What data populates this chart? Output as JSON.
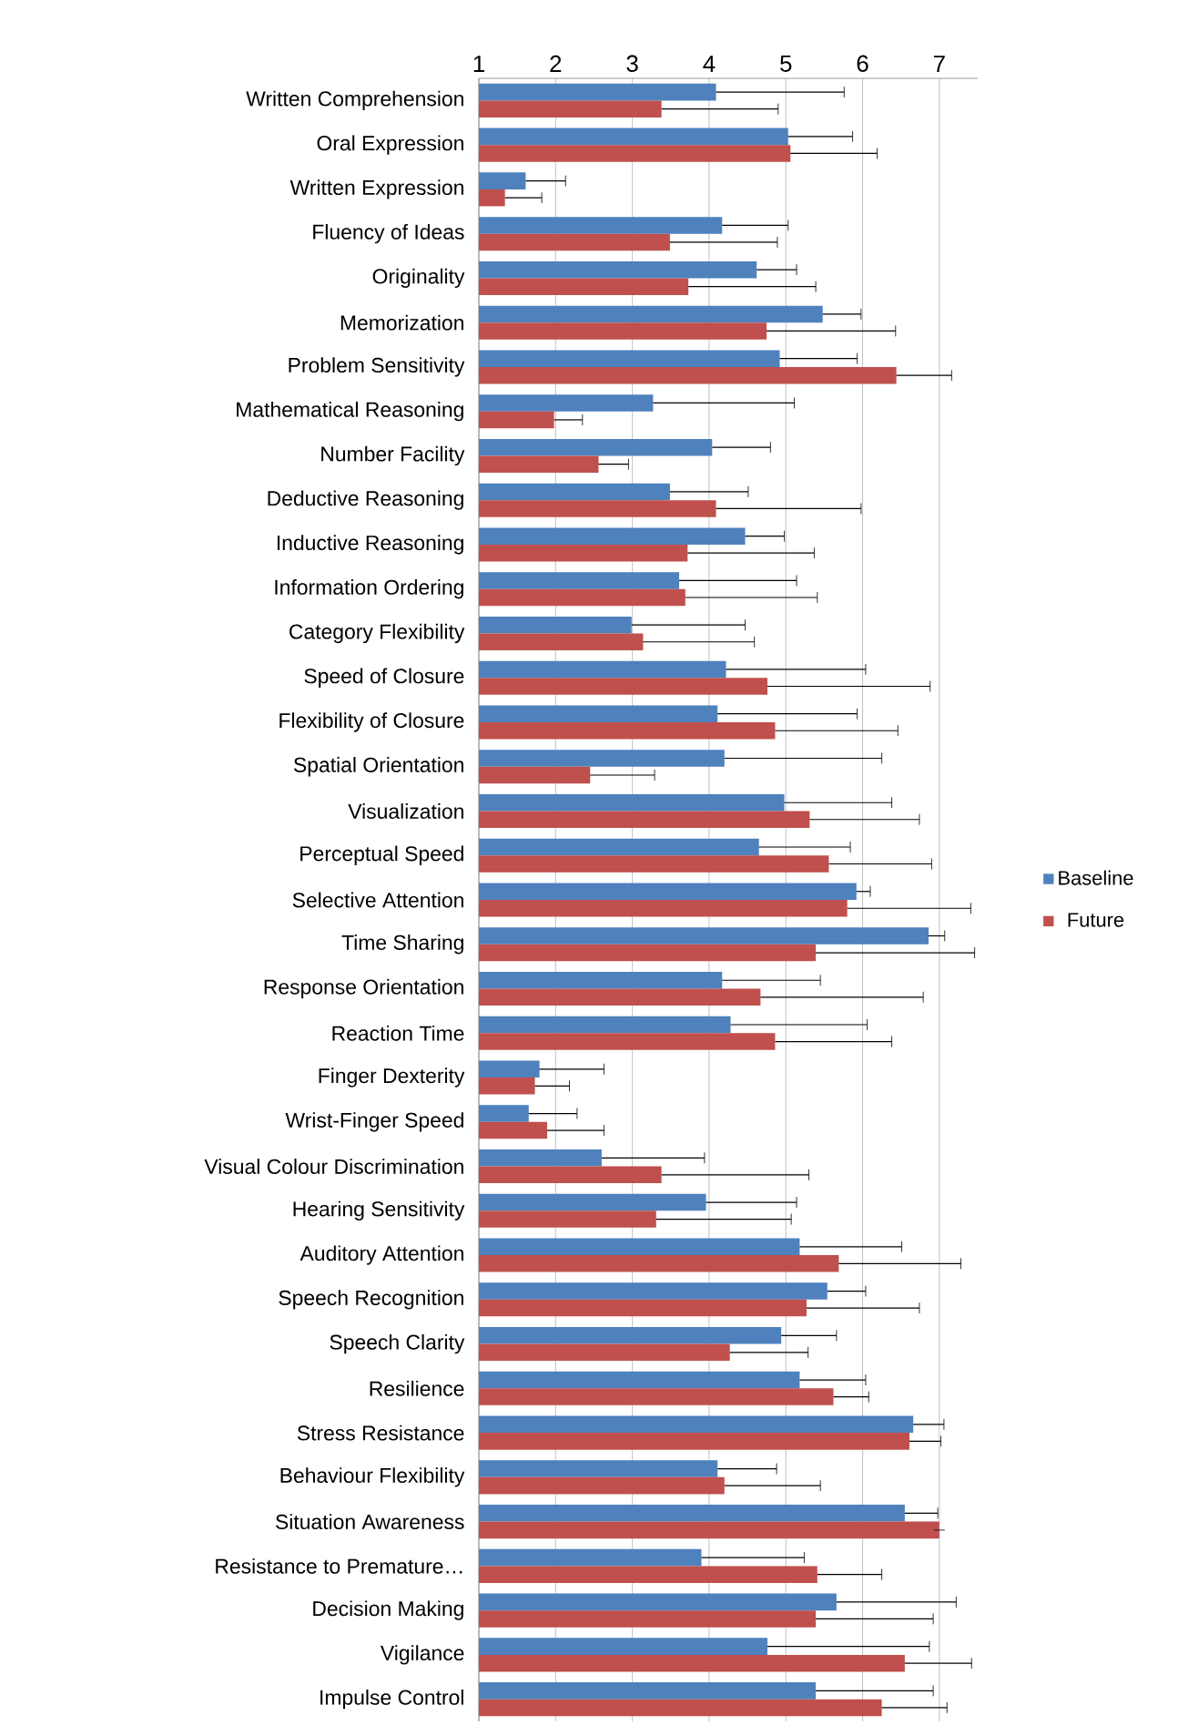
{
  "chart_data": {
    "type": "bar",
    "orientation": "horizontal",
    "categories": [
      "Written Comprehension",
      "Oral Expression",
      "Written Expression",
      "Fluency of Ideas",
      "Originality",
      "Memorization",
      "Problem Sensitivity",
      "Mathematical Reasoning",
      "Number Facility",
      "Deductive Reasoning",
      "Inductive Reasoning",
      "Information Ordering",
      "Category Flexibility",
      "Speed of Closure",
      "Flexibility of Closure",
      "Spatial Orientation",
      "Visualization",
      "Perceptual Speed",
      "Selective Attention",
      "Time Sharing",
      "Response Orientation",
      "Reaction Time",
      "Finger Dexterity",
      "Wrist-Finger Speed",
      "Visual Colour Discrimination",
      "Hearing Sensitivity",
      "Auditory Attention",
      "Speech Recognition",
      "Speech Clarity",
      "Resilience",
      "Stress Resistance",
      "Behaviour Flexibility",
      "Situation Awareness",
      "Resistance to Premature…",
      "Decision Making",
      "Vigilance",
      "Impulse Control"
    ],
    "series": [
      {
        "name": "Baseline",
        "color": "#4f81bd",
        "values": [
          4.09,
          5.03,
          1.61,
          4.17,
          4.62,
          5.48,
          4.92,
          3.27,
          4.04,
          3.49,
          4.47,
          3.61,
          2.99,
          4.22,
          4.11,
          4.2,
          4.98,
          4.65,
          5.92,
          6.86,
          4.17,
          4.28,
          1.79,
          1.65,
          2.6,
          3.96,
          5.18,
          5.54,
          4.94,
          5.18,
          6.66,
          4.11,
          6.55,
          3.9,
          5.66,
          4.76,
          5.39
        ],
        "errors": [
          [
            4.09,
            5.76
          ],
          [
            5.03,
            5.87
          ],
          [
            1.61,
            2.13
          ],
          [
            4.17,
            5.03
          ],
          [
            4.62,
            5.14
          ],
          [
            5.48,
            5.98
          ],
          [
            4.92,
            5.93
          ],
          [
            3.27,
            5.11
          ],
          [
            4.04,
            4.8
          ],
          [
            3.49,
            4.51
          ],
          [
            4.47,
            4.98
          ],
          [
            3.61,
            5.14
          ],
          [
            2.99,
            4.47
          ],
          [
            4.22,
            6.04
          ],
          [
            4.11,
            5.93
          ],
          [
            4.2,
            6.25
          ],
          [
            4.98,
            6.38
          ],
          [
            4.65,
            5.84
          ],
          [
            5.92,
            6.1
          ],
          [
            6.86,
            7.07
          ],
          [
            4.17,
            5.45
          ],
          [
            4.28,
            6.06
          ],
          [
            1.79,
            2.63
          ],
          [
            1.65,
            2.28
          ],
          [
            2.6,
            3.94
          ],
          [
            3.96,
            5.14
          ],
          [
            5.18,
            6.51
          ],
          [
            5.54,
            6.04
          ],
          [
            4.94,
            5.66
          ],
          [
            5.18,
            6.04
          ],
          [
            6.66,
            7.06
          ],
          [
            4.11,
            4.88
          ],
          [
            6.55,
            6.98
          ],
          [
            3.9,
            5.24
          ],
          [
            5.66,
            7.22
          ],
          [
            4.76,
            6.87
          ],
          [
            5.39,
            6.92
          ]
        ]
      },
      {
        "name": "Future",
        "color": "#c0504d",
        "values": [
          3.38,
          5.06,
          1.34,
          3.49,
          3.73,
          4.75,
          6.44,
          1.98,
          2.56,
          4.09,
          3.72,
          3.69,
          3.14,
          4.76,
          4.86,
          2.45,
          5.31,
          5.56,
          5.8,
          5.39,
          4.67,
          4.86,
          1.73,
          1.89,
          3.38,
          3.31,
          5.69,
          5.27,
          4.27,
          5.62,
          6.61,
          4.2,
          7.0,
          5.41,
          5.39,
          6.55,
          6.25
        ],
        "errors": [
          [
            3.38,
            4.9
          ],
          [
            5.06,
            6.19
          ],
          [
            1.34,
            1.82
          ],
          [
            3.49,
            4.89
          ],
          [
            3.73,
            5.39
          ],
          [
            4.75,
            6.43
          ],
          [
            6.44,
            7.16
          ],
          [
            1.98,
            2.35
          ],
          [
            2.56,
            2.95
          ],
          [
            4.09,
            5.98
          ],
          [
            3.72,
            5.37
          ],
          [
            3.69,
            5.41
          ],
          [
            3.14,
            4.59
          ],
          [
            4.76,
            6.88
          ],
          [
            4.86,
            6.46
          ],
          [
            2.45,
            3.29
          ],
          [
            5.31,
            6.74
          ],
          [
            5.56,
            6.9
          ],
          [
            5.8,
            7.41
          ],
          [
            5.39,
            7.46
          ],
          [
            4.67,
            6.79
          ],
          [
            4.86,
            6.38
          ],
          [
            1.73,
            2.18
          ],
          [
            1.89,
            2.63
          ],
          [
            3.38,
            5.3
          ],
          [
            3.31,
            5.07
          ],
          [
            5.69,
            7.28
          ],
          [
            5.27,
            6.74
          ],
          [
            4.27,
            5.29
          ],
          [
            5.62,
            6.08
          ],
          [
            6.61,
            7.02
          ],
          [
            4.2,
            5.45
          ],
          [
            7.0,
            7.0
          ],
          [
            5.41,
            6.25
          ],
          [
            5.39,
            6.92
          ],
          [
            6.55,
            7.42
          ],
          [
            6.25,
            7.1
          ]
        ]
      }
    ],
    "xlim": [
      1,
      7.5
    ],
    "xticks": [
      1,
      2,
      3,
      4,
      5,
      6,
      7
    ],
    "grid": "x",
    "legend": "right"
  }
}
